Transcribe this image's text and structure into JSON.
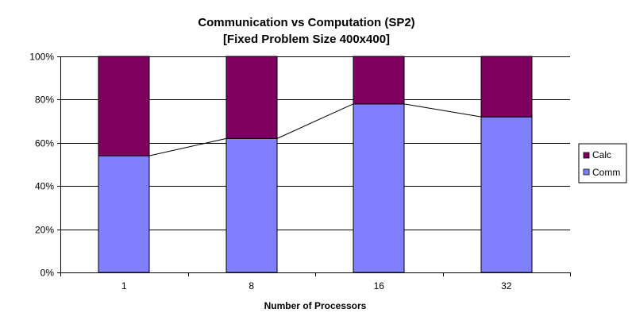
{
  "chart_data": {
    "type": "bar",
    "stacked": "percent",
    "title": "Communication vs Computation (SP2)",
    "subtitle": "[Fixed Problem Size 400x400]",
    "xlabel": "Number of Processors",
    "ylabel": "",
    "categories": [
      "1",
      "8",
      "16",
      "32"
    ],
    "ylim": [
      0,
      100
    ],
    "yticks": [
      0,
      20,
      40,
      60,
      80,
      100
    ],
    "ytick_labels": [
      "0%",
      "20%",
      "40%",
      "60%",
      "80%",
      "100%"
    ],
    "grid": true,
    "legend_position": "right",
    "series": [
      {
        "name": "Comm",
        "values": [
          54,
          62,
          78,
          72
        ],
        "color": "#8080ff"
      },
      {
        "name": "Calc",
        "values": [
          46,
          38,
          22,
          28
        ],
        "color": "#800060"
      }
    ],
    "trend_line": {
      "series": "Comm",
      "color": "#000000"
    },
    "plot_background": "#ffffff"
  }
}
